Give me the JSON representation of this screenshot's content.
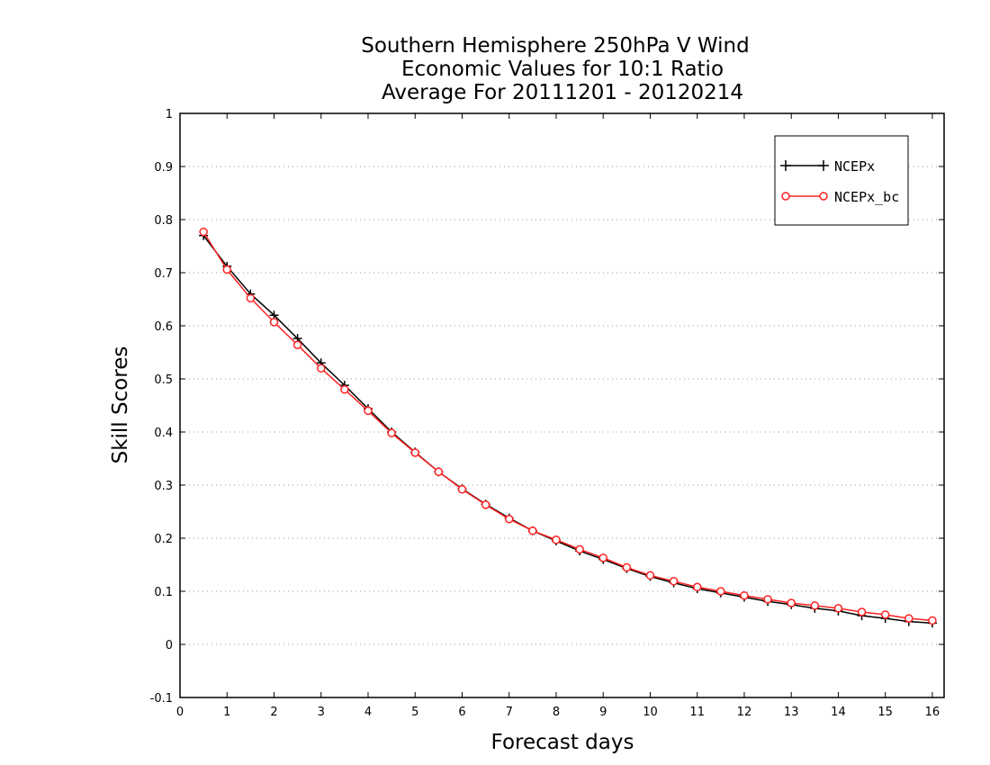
{
  "chart_data": {
    "type": "line",
    "title": [
      "Southern Hemisphere 250hPa V Wind",
      "Economic Values for 10:1 Ratio",
      "Average For 20111201 - 20120214"
    ],
    "xlabel": "Forecast days",
    "ylabel": "Skill Scores",
    "xlim": [
      0,
      16.25
    ],
    "ylim": [
      -0.1,
      1
    ],
    "xticks": [
      0,
      1,
      2,
      3,
      4,
      5,
      6,
      7,
      8,
      9,
      10,
      11,
      12,
      13,
      14,
      15,
      16
    ],
    "yticks": [
      -0.1,
      0,
      0.1,
      0.2,
      0.3,
      0.4,
      0.5,
      0.6,
      0.7,
      0.8,
      0.9,
      1
    ],
    "ytick_labels": [
      "-0.1",
      "0",
      "0.1",
      "0.2",
      "0.3",
      "0.4",
      "0.5",
      "0.6",
      "0.7",
      "0.8",
      "0.9",
      "1"
    ],
    "grid": "horizontal dotted",
    "legend_position": "top-right",
    "x": [
      0.5,
      1,
      1.5,
      2,
      2.5,
      3,
      3.5,
      4,
      4.5,
      5,
      5.5,
      6,
      6.5,
      7,
      7.5,
      8,
      8.5,
      9,
      9.5,
      10,
      10.5,
      11,
      11.5,
      12,
      12.5,
      13,
      13.5,
      14,
      14.5,
      15,
      15.5,
      16
    ],
    "series": [
      {
        "name": "NCEPx",
        "color": "#000000",
        "marker": "plus",
        "values": [
          0.77,
          0.712,
          0.66,
          0.62,
          0.576,
          0.53,
          0.488,
          0.444,
          0.4,
          0.362,
          0.325,
          0.293,
          0.264,
          0.238,
          0.214,
          0.195,
          0.176,
          0.16,
          0.143,
          0.128,
          0.116,
          0.105,
          0.097,
          0.089,
          0.081,
          0.075,
          0.068,
          0.063,
          0.054,
          0.049,
          0.043,
          0.04
        ]
      },
      {
        "name": "NCEPx_bc",
        "color": "#ff2020",
        "marker": "circle",
        "values": [
          0.777,
          0.706,
          0.652,
          0.607,
          0.564,
          0.52,
          0.48,
          0.44,
          0.398,
          0.361,
          0.325,
          0.292,
          0.263,
          0.236,
          0.214,
          0.197,
          0.179,
          0.163,
          0.145,
          0.13,
          0.119,
          0.108,
          0.1,
          0.092,
          0.085,
          0.078,
          0.073,
          0.068,
          0.061,
          0.056,
          0.049,
          0.045
        ]
      }
    ]
  }
}
